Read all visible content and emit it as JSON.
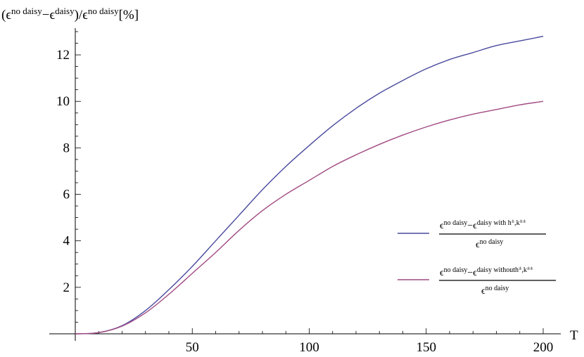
{
  "chart_data": {
    "type": "line",
    "title": "",
    "ylabel": {
      "open": "(ϵ",
      "sup1": "no daisy",
      "minus": "−ϵ",
      "sup2": "daisy",
      "mid": ")/ϵ",
      "sup3": "no daisy",
      "end": "[%]"
    },
    "xlabel": "T",
    "xlim": [
      0,
      200
    ],
    "ylim": [
      0,
      13
    ],
    "xticks": [
      50,
      100,
      150,
      200
    ],
    "yticks": [
      2,
      4,
      6,
      8,
      10,
      12
    ],
    "grid": false,
    "legend_position": "right",
    "series": [
      {
        "name": "ϵ^{no daisy} − ϵ^{daisy with h±, k±±} / ϵ^{no daisy}",
        "legend": {
          "num_base1": "ϵ",
          "num_sup1": "no daisy",
          "num_minus": "−ϵ",
          "num_sup2": "daisy with h",
          "num_sup3": "±",
          "num_sup4": ",k",
          "num_sup5": "±±",
          "den_base": "ϵ",
          "den_sup": "no daisy"
        },
        "color": "#4a4a9e",
        "x": [
          0,
          10,
          20,
          30,
          40,
          50,
          60,
          70,
          80,
          90,
          100,
          110,
          120,
          130,
          140,
          150,
          160,
          170,
          180,
          190,
          200
        ],
        "y": [
          0,
          0.05,
          0.35,
          1.0,
          1.9,
          2.9,
          4.0,
          5.1,
          6.2,
          7.2,
          8.1,
          8.95,
          9.7,
          10.35,
          10.9,
          11.4,
          11.8,
          12.1,
          12.4,
          12.6,
          12.8
        ]
      },
      {
        "name": "ϵ^{no daisy} − ϵ^{daisy withouth±, k±±} / ϵ^{no daisy}",
        "legend": {
          "num_base1": "ϵ",
          "num_sup1": "no daisy",
          "num_minus": "−ϵ",
          "num_sup2": "daisy withouth",
          "num_sup3": "±",
          "num_sup4": ",k",
          "num_sup5": "±±",
          "den_base": "ϵ",
          "den_sup": "no daisy"
        },
        "color": "#a14b82",
        "x": [
          0,
          10,
          20,
          30,
          40,
          50,
          60,
          70,
          80,
          90,
          100,
          110,
          120,
          130,
          140,
          150,
          160,
          170,
          180,
          190,
          200
        ],
        "y": [
          0,
          0.05,
          0.33,
          0.9,
          1.7,
          2.6,
          3.5,
          4.45,
          5.3,
          6.0,
          6.6,
          7.2,
          7.7,
          8.15,
          8.55,
          8.9,
          9.2,
          9.45,
          9.65,
          9.85,
          10.0
        ]
      }
    ]
  }
}
